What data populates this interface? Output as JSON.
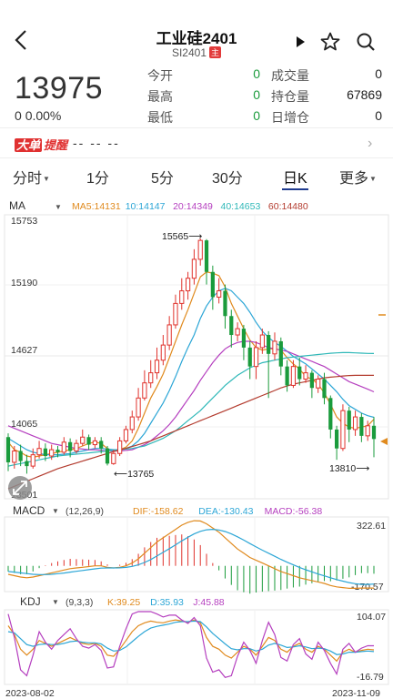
{
  "header": {
    "title": "工业硅2401",
    "code": "SI2401",
    "main_tag": "主"
  },
  "quote": {
    "price": "13975",
    "change": "0",
    "change_pct": "0.00%",
    "fields": [
      {
        "label": "今开",
        "value": "0"
      },
      {
        "label": "成交量",
        "value": "0"
      },
      {
        "label": "最高",
        "value": "0"
      },
      {
        "label": "持仓量",
        "value": "67869"
      },
      {
        "label": "最低",
        "value": "0"
      },
      {
        "label": "日增仓",
        "value": "0"
      }
    ]
  },
  "alert": {
    "badge1": "大单",
    "badge2": "提醒",
    "placeholder": "-- -- --"
  },
  "tabs": [
    {
      "label": "分时",
      "dropdown": true
    },
    {
      "label": "1分"
    },
    {
      "label": "5分"
    },
    {
      "label": "30分"
    },
    {
      "label": "日K",
      "active": true
    },
    {
      "label": "更多",
      "dropdown": true
    }
  ],
  "ma_legend": {
    "name": "MA",
    "items": [
      {
        "text": "MA5:14131",
        "color": "#e08a1e"
      },
      {
        "text": "10:14147",
        "color": "#2ca6d6"
      },
      {
        "text": "20:14349",
        "color": "#b53fbf"
      },
      {
        "text": "40:14653",
        "color": "#2fb8b8"
      },
      {
        "text": "60:14480",
        "color": "#b33b2e"
      }
    ]
  },
  "macd_legend": {
    "name": "MACD",
    "params": "(12,26,9)",
    "items": [
      {
        "text": "DIF:-158.62",
        "color": "#e08a1e"
      },
      {
        "text": "DEA:-130.43",
        "color": "#2ca6d6"
      },
      {
        "text": "MACD:-56.38",
        "color": "#b53fbf"
      }
    ]
  },
  "kdj_legend": {
    "name": "KDJ",
    "params": "(9,3,3)",
    "items": [
      {
        "text": "K:39.25",
        "color": "#e08a1e"
      },
      {
        "text": "D:35.93",
        "color": "#2ca6d6"
      },
      {
        "text": "J:45.88",
        "color": "#b53fbf"
      }
    ]
  },
  "chart_data": {
    "type": "candlestick",
    "y_axis_labels": [
      "15753",
      "15190",
      "14627",
      "14065",
      "13501"
    ],
    "ylim": [
      13501,
      15753
    ],
    "annotations": [
      "15565",
      "13765",
      "13810"
    ],
    "macd_axis": [
      "322.61",
      "-170.57"
    ],
    "kdj_axis": [
      "104.07",
      "-16.79"
    ],
    "date_start": "2023-08-02",
    "date_end": "2023-11-09",
    "candles": [
      {
        "o": 13990,
        "c": 13790,
        "h": 14020,
        "l": 13720
      },
      {
        "o": 13790,
        "c": 13880,
        "h": 13920,
        "l": 13740
      },
      {
        "o": 13880,
        "c": 13800,
        "h": 13930,
        "l": 13760
      },
      {
        "o": 13800,
        "c": 13760,
        "h": 13850,
        "l": 13700
      },
      {
        "o": 13760,
        "c": 13850,
        "h": 13900,
        "l": 13740
      },
      {
        "o": 13850,
        "c": 13900,
        "h": 13960,
        "l": 13820
      },
      {
        "o": 13900,
        "c": 13840,
        "h": 13940,
        "l": 13800
      },
      {
        "o": 13840,
        "c": 13890,
        "h": 13930,
        "l": 13810
      },
      {
        "o": 13890,
        "c": 13870,
        "h": 13920,
        "l": 13830
      },
      {
        "o": 13870,
        "c": 13950,
        "h": 13990,
        "l": 13850
      },
      {
        "o": 13950,
        "c": 13880,
        "h": 13980,
        "l": 13830
      },
      {
        "o": 13880,
        "c": 13940,
        "h": 13970,
        "l": 13860
      },
      {
        "o": 13940,
        "c": 13990,
        "h": 14050,
        "l": 13920
      },
      {
        "o": 13990,
        "c": 13930,
        "h": 14010,
        "l": 13890
      },
      {
        "o": 13930,
        "c": 13960,
        "h": 13990,
        "l": 13900
      },
      {
        "o": 13960,
        "c": 13900,
        "h": 13990,
        "l": 13860
      },
      {
        "o": 13900,
        "c": 13780,
        "h": 13920,
        "l": 13765
      },
      {
        "o": 13780,
        "c": 13860,
        "h": 13890,
        "l": 13770
      },
      {
        "o": 13860,
        "c": 13960,
        "h": 13990,
        "l": 13840
      },
      {
        "o": 13960,
        "c": 14050,
        "h": 14080,
        "l": 13940
      },
      {
        "o": 14050,
        "c": 14150,
        "h": 14200,
        "l": 14020
      },
      {
        "o": 14150,
        "c": 14300,
        "h": 14380,
        "l": 14120
      },
      {
        "o": 14300,
        "c": 14420,
        "h": 14520,
        "l": 14280
      },
      {
        "o": 14420,
        "c": 14500,
        "h": 14600,
        "l": 14380
      },
      {
        "o": 14500,
        "c": 14600,
        "h": 14700,
        "l": 14450
      },
      {
        "o": 14600,
        "c": 14720,
        "h": 14800,
        "l": 14560
      },
      {
        "o": 14720,
        "c": 14880,
        "h": 14950,
        "l": 14680
      },
      {
        "o": 14880,
        "c": 15050,
        "h": 15120,
        "l": 14850
      },
      {
        "o": 15050,
        "c": 15150,
        "h": 15250,
        "l": 15000
      },
      {
        "o": 15150,
        "c": 15250,
        "h": 15300,
        "l": 15080
      },
      {
        "o": 15250,
        "c": 15400,
        "h": 15480,
        "l": 15200
      },
      {
        "o": 15400,
        "c": 15550,
        "h": 15565,
        "l": 15350
      },
      {
        "o": 15550,
        "c": 15300,
        "h": 15560,
        "l": 15200
      },
      {
        "o": 15300,
        "c": 15100,
        "h": 15350,
        "l": 15000
      },
      {
        "o": 15100,
        "c": 15150,
        "h": 15250,
        "l": 15050
      },
      {
        "o": 15150,
        "c": 14950,
        "h": 15200,
        "l": 14850
      },
      {
        "o": 14950,
        "c": 14800,
        "h": 15000,
        "l": 14700
      },
      {
        "o": 14800,
        "c": 14850,
        "h": 14900,
        "l": 14750
      },
      {
        "o": 14850,
        "c": 14700,
        "h": 14880,
        "l": 14600
      },
      {
        "o": 14700,
        "c": 14550,
        "h": 14750,
        "l": 14450
      },
      {
        "o": 14550,
        "c": 14700,
        "h": 14750,
        "l": 14450
      },
      {
        "o": 14700,
        "c": 14800,
        "h": 14850,
        "l": 14650
      },
      {
        "o": 14800,
        "c": 14650,
        "h": 14830,
        "l": 14300
      },
      {
        "o": 14650,
        "c": 14750,
        "h": 14820,
        "l": 14600
      },
      {
        "o": 14750,
        "c": 14550,
        "h": 14780,
        "l": 14480
      },
      {
        "o": 14550,
        "c": 14400,
        "h": 14600,
        "l": 14350
      },
      {
        "o": 14400,
        "c": 14550,
        "h": 14600,
        "l": 14380
      },
      {
        "o": 14550,
        "c": 14450,
        "h": 14620,
        "l": 14400
      },
      {
        "o": 14450,
        "c": 14500,
        "h": 14560,
        "l": 14420
      },
      {
        "o": 14500,
        "c": 14380,
        "h": 14520,
        "l": 14300
      },
      {
        "o": 14380,
        "c": 14450,
        "h": 14480,
        "l": 14340
      },
      {
        "o": 14450,
        "c": 14300,
        "h": 14500,
        "l": 14250
      },
      {
        "o": 14300,
        "c": 14050,
        "h": 14320,
        "l": 13980
      },
      {
        "o": 14050,
        "c": 13900,
        "h": 14080,
        "l": 13810
      },
      {
        "o": 13900,
        "c": 14200,
        "h": 14250,
        "l": 13880
      },
      {
        "o": 14200,
        "c": 14050,
        "h": 14230,
        "l": 13950
      },
      {
        "o": 14050,
        "c": 14150,
        "h": 14200,
        "l": 14000
      },
      {
        "o": 14150,
        "c": 14000,
        "h": 14180,
        "l": 13950
      },
      {
        "o": 14000,
        "c": 14080,
        "h": 14120,
        "l": 13960
      },
      {
        "o": 14080,
        "c": 13975,
        "h": 14150,
        "l": 13830
      }
    ],
    "ma5": [
      13950,
      13890,
      13870,
      13840,
      13830,
      13840,
      13850,
      13860,
      13870,
      13880,
      13890,
      13900,
      13920,
      13940,
      13950,
      13940,
      13900,
      13880,
      13890,
      13910,
      13960,
      14060,
      14180,
      14300,
      14390,
      14490,
      14620,
      14750,
      14880,
      15000,
      15130,
      15260,
      15300,
      15290,
      15270,
      15180,
      15050,
      14950,
      14850,
      14760,
      14700,
      14680,
      14690,
      14690,
      14680,
      14620,
      14570,
      14530,
      14470,
      14450,
      14410,
      14340,
      14250,
      14150,
      14100,
      14070,
      14060,
      14070,
      14080,
      14131
    ],
    "ma10": [
      13980,
      13950,
      13920,
      13890,
      13870,
      13860,
      13850,
      13850,
      13850,
      13855,
      13860,
      13870,
      13880,
      13890,
      13900,
      13900,
      13895,
      13890,
      13890,
      13900,
      13920,
      13960,
      14020,
      14100,
      14180,
      14260,
      14360,
      14470,
      14590,
      14700,
      14800,
      14930,
      15030,
      15100,
      15150,
      15170,
      15150,
      15100,
      15050,
      14980,
      14900,
      14830,
      14780,
      14740,
      14710,
      14670,
      14630,
      14600,
      14570,
      14530,
      14490,
      14450,
      14400,
      14350,
      14290,
      14240,
      14210,
      14180,
      14160,
      14147
    ],
    "ma20": [
      14080,
      14060,
      14040,
      14020,
      14000,
      13980,
      13960,
      13940,
      13930,
      13920,
      13910,
      13900,
      13895,
      13890,
      13890,
      13885,
      13880,
      13880,
      13880,
      13885,
      13890,
      13910,
      13930,
      13960,
      14000,
      14040,
      14090,
      14150,
      14220,
      14290,
      14360,
      14440,
      14510,
      14580,
      14640,
      14690,
      14720,
      14740,
      14750,
      14750,
      14740,
      14720,
      14700,
      14690,
      14680,
      14670,
      14650,
      14630,
      14610,
      14590,
      14570,
      14550,
      14520,
      14490,
      14460,
      14430,
      14410,
      14390,
      14370,
      14349
    ],
    "ma40": [
      13760,
      13770,
      13780,
      13790,
      13800,
      13810,
      13820,
      13830,
      13840,
      13845,
      13850,
      13855,
      13860,
      13865,
      13870,
      13875,
      13880,
      13885,
      13890,
      13895,
      13900,
      13910,
      13920,
      13940,
      13960,
      13980,
      14010,
      14040,
      14080,
      14120,
      14160,
      14200,
      14250,
      14300,
      14350,
      14400,
      14440,
      14480,
      14510,
      14540,
      14560,
      14580,
      14590,
      14600,
      14610,
      14620,
      14625,
      14630,
      14635,
      14640,
      14645,
      14650,
      14655,
      14658,
      14660,
      14660,
      14658,
      14656,
      14654,
      14653
    ],
    "ma60": [
      13580,
      13600,
      13620,
      13640,
      13660,
      13680,
      13700,
      13720,
      13740,
      13755,
      13770,
      13785,
      13800,
      13815,
      13830,
      13845,
      13860,
      13875,
      13890,
      13900,
      13915,
      13930,
      13945,
      13960,
      13980,
      14000,
      14020,
      14040,
      14060,
      14080,
      14100,
      14120,
      14140,
      14160,
      14180,
      14200,
      14220,
      14240,
      14260,
      14280,
      14300,
      14320,
      14340,
      14360,
      14380,
      14395,
      14410,
      14420,
      14430,
      14440,
      14450,
      14460,
      14465,
      14470,
      14475,
      14478,
      14480,
      14480,
      14480,
      14480
    ],
    "dif": [
      -60,
      -70,
      -80,
      -85,
      -80,
      -70,
      -60,
      -50,
      -40,
      -30,
      -20,
      -15,
      -10,
      -5,
      0,
      0,
      -10,
      -15,
      -10,
      0,
      20,
      50,
      90,
      130,
      170,
      200,
      230,
      260,
      290,
      310,
      322,
      320,
      300,
      270,
      240,
      200,
      160,
      120,
      90,
      60,
      40,
      20,
      0,
      -20,
      -40,
      -55,
      -70,
      -85,
      -95,
      -105,
      -115,
      -125,
      -140,
      -150,
      -155,
      -160,
      -160,
      -158,
      -158,
      -158
    ],
    "dea": [
      -40,
      -45,
      -50,
      -55,
      -60,
      -62,
      -62,
      -60,
      -56,
      -51,
      -45,
      -39,
      -33,
      -27,
      -21,
      -16,
      -15,
      -15,
      -14,
      -11,
      -4,
      7,
      24,
      45,
      70,
      96,
      123,
      150,
      178,
      204,
      228,
      246,
      257,
      260,
      256,
      245,
      228,
      207,
      184,
      159,
      135,
      112,
      90,
      68,
      46,
      26,
      7,
      -11,
      -28,
      -43,
      -58,
      -71,
      -85,
      -98,
      -109,
      -119,
      -127,
      -132,
      -132,
      -130
    ],
    "macd_hist": [
      -40,
      -50,
      -60,
      -60,
      -40,
      -16,
      4,
      20,
      32,
      42,
      50,
      48,
      46,
      44,
      42,
      32,
      10,
      0,
      8,
      22,
      48,
      86,
      132,
      170,
      200,
      208,
      214,
      220,
      224,
      212,
      188,
      148,
      86,
      20,
      -32,
      -90,
      -136,
      -174,
      -188,
      -198,
      -190,
      -184,
      -180,
      -176,
      -172,
      -162,
      -154,
      -148,
      -134,
      -124,
      -114,
      -108,
      -110,
      -104,
      -92,
      -82,
      -66,
      -52,
      -52,
      -56
    ],
    "kdj_k": [
      80,
      65,
      40,
      30,
      40,
      55,
      50,
      45,
      50,
      55,
      60,
      55,
      50,
      48,
      50,
      45,
      30,
      28,
      40,
      55,
      70,
      80,
      85,
      88,
      86,
      85,
      88,
      90,
      88,
      86,
      90,
      85,
      60,
      45,
      40,
      30,
      25,
      35,
      45,
      40,
      30,
      45,
      60,
      55,
      40,
      35,
      45,
      50,
      40,
      35,
      45,
      40,
      30,
      20,
      35,
      40,
      35,
      38,
      40,
      39
    ],
    "kdj_d": [
      70,
      68,
      58,
      48,
      45,
      48,
      49,
      48,
      48,
      50,
      53,
      54,
      52,
      51,
      51,
      49,
      42,
      37,
      38,
      44,
      53,
      62,
      70,
      76,
      79,
      81,
      83,
      86,
      87,
      87,
      88,
      87,
      78,
      67,
      58,
      49,
      41,
      39,
      41,
      41,
      37,
      40,
      47,
      50,
      47,
      43,
      44,
      46,
      44,
      41,
      42,
      41,
      37,
      31,
      32,
      35,
      35,
      36,
      37,
      36
    ],
    "kdj_j": [
      100,
      60,
      5,
      -5,
      30,
      70,
      52,
      40,
      55,
      65,
      75,
      58,
      45,
      42,
      48,
      38,
      8,
      10,
      45,
      75,
      100,
      104,
      104,
      104,
      100,
      95,
      98,
      98,
      90,
      84,
      94,
      80,
      25,
      1,
      5,
      -8,
      -5,
      28,
      52,
      38,
      16,
      55,
      86,
      65,
      26,
      20,
      48,
      58,
      32,
      23,
      52,
      38,
      16,
      -2,
      40,
      50,
      35,
      42,
      46,
      46
    ]
  }
}
